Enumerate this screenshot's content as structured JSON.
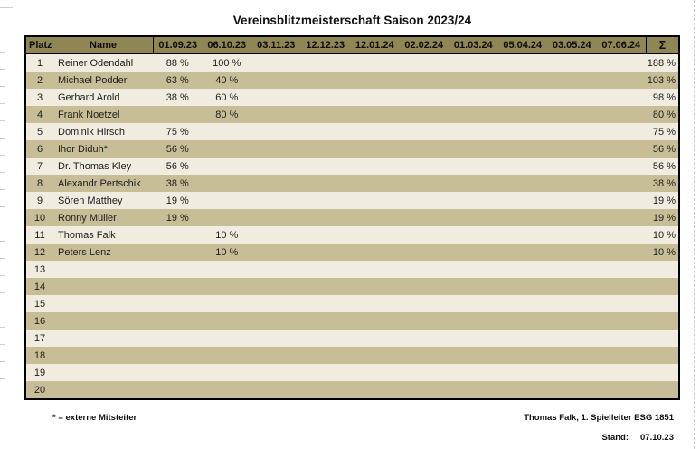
{
  "title": "Vereinsblitzmeisterschaft Saison 2023/24",
  "colors": {
    "header_bg": "#8e8655",
    "row_odd": "#f0ecdf",
    "row_even": "#c7be97",
    "border": "#000000",
    "page_bg": "#ffffff"
  },
  "table": {
    "headers": {
      "platz": "Platz",
      "name": "Name",
      "dates": [
        "01.09.23",
        "06.10.23",
        "03.11.23",
        "12.12.23",
        "12.01.24",
        "02.02.24",
        "01.03.24",
        "05.04.24",
        "03.05.24",
        "07.06.24"
      ],
      "sum": "Σ"
    },
    "rows": [
      {
        "platz": "1",
        "name": "Reiner Odendahl",
        "values": [
          "88 %",
          "100 %",
          "",
          "",
          "",
          "",
          "",
          "",
          "",
          ""
        ],
        "sum": "188 %"
      },
      {
        "platz": "2",
        "name": "Michael Podder",
        "values": [
          "63 %",
          "40 %",
          "",
          "",
          "",
          "",
          "",
          "",
          "",
          ""
        ],
        "sum": "103 %"
      },
      {
        "platz": "3",
        "name": "Gerhard Arold",
        "values": [
          "38 %",
          "60 %",
          "",
          "",
          "",
          "",
          "",
          "",
          "",
          ""
        ],
        "sum": "98 %"
      },
      {
        "platz": "4",
        "name": "Frank Noetzel",
        "values": [
          "",
          "80 %",
          "",
          "",
          "",
          "",
          "",
          "",
          "",
          ""
        ],
        "sum": "80 %"
      },
      {
        "platz": "5",
        "name": "Dominik Hirsch",
        "values": [
          "75 %",
          "",
          "",
          "",
          "",
          "",
          "",
          "",
          "",
          ""
        ],
        "sum": "75 %"
      },
      {
        "platz": "6",
        "name": "Ihor Diduh*",
        "values": [
          "56 %",
          "",
          "",
          "",
          "",
          "",
          "",
          "",
          "",
          ""
        ],
        "sum": "56 %"
      },
      {
        "platz": "7",
        "name": "Dr. Thomas Kley",
        "values": [
          "56 %",
          "",
          "",
          "",
          "",
          "",
          "",
          "",
          "",
          ""
        ],
        "sum": "56 %"
      },
      {
        "platz": "8",
        "name": "Alexandr Pertschik",
        "values": [
          "38 %",
          "",
          "",
          "",
          "",
          "",
          "",
          "",
          "",
          ""
        ],
        "sum": "38 %"
      },
      {
        "platz": "9",
        "name": "Sören Matthey",
        "values": [
          "19 %",
          "",
          "",
          "",
          "",
          "",
          "",
          "",
          "",
          ""
        ],
        "sum": "19 %"
      },
      {
        "platz": "10",
        "name": "Ronny Müller",
        "values": [
          "19 %",
          "",
          "",
          "",
          "",
          "",
          "",
          "",
          "",
          ""
        ],
        "sum": "19 %"
      },
      {
        "platz": "11",
        "name": "Thomas Falk",
        "values": [
          "",
          "10 %",
          "",
          "",
          "",
          "",
          "",
          "",
          "",
          ""
        ],
        "sum": "10 %"
      },
      {
        "platz": "12",
        "name": "Peters Lenz",
        "values": [
          "",
          "10 %",
          "",
          "",
          "",
          "",
          "",
          "",
          "",
          ""
        ],
        "sum": "10 %"
      },
      {
        "platz": "13",
        "name": "",
        "values": [
          "",
          "",
          "",
          "",
          "",
          "",
          "",
          "",
          "",
          ""
        ],
        "sum": ""
      },
      {
        "platz": "14",
        "name": "",
        "values": [
          "",
          "",
          "",
          "",
          "",
          "",
          "",
          "",
          "",
          ""
        ],
        "sum": ""
      },
      {
        "platz": "15",
        "name": "",
        "values": [
          "",
          "",
          "",
          "",
          "",
          "",
          "",
          "",
          "",
          ""
        ],
        "sum": ""
      },
      {
        "platz": "16",
        "name": "",
        "values": [
          "",
          "",
          "",
          "",
          "",
          "",
          "",
          "",
          "",
          ""
        ],
        "sum": ""
      },
      {
        "platz": "17",
        "name": "",
        "values": [
          "",
          "",
          "",
          "",
          "",
          "",
          "",
          "",
          "",
          ""
        ],
        "sum": ""
      },
      {
        "platz": "18",
        "name": "",
        "values": [
          "",
          "",
          "",
          "",
          "",
          "",
          "",
          "",
          "",
          ""
        ],
        "sum": ""
      },
      {
        "platz": "19",
        "name": "",
        "values": [
          "",
          "",
          "",
          "",
          "",
          "",
          "",
          "",
          "",
          ""
        ],
        "sum": ""
      },
      {
        "platz": "20",
        "name": "",
        "values": [
          "",
          "",
          "",
          "",
          "",
          "",
          "",
          "",
          "",
          ""
        ],
        "sum": ""
      }
    ]
  },
  "footer": {
    "legend": "* = externe Mitsteiter",
    "signature": "Thomas Falk, 1. Spielleiter ESG 1851",
    "stand_label": "Stand:",
    "stand_value": "07.10.23"
  }
}
